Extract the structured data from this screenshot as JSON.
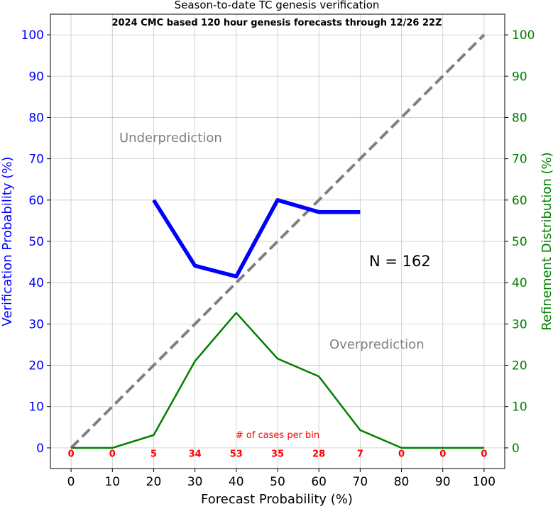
{
  "chart_data": {
    "type": "line",
    "title": "Season-to-date TC genesis verification",
    "subtitle": "2024 CMC based 120 hour genesis forecasts through 12/26 22Z",
    "xlabel": "Forecast Probability (%)",
    "ylabel_left": "Verification Probability (%)",
    "ylabel_right": "Refinement Distribution (%)",
    "xlim": [
      -5,
      105
    ],
    "ylim": [
      -5,
      105
    ],
    "x_ticks": [
      0,
      10,
      20,
      30,
      40,
      50,
      60,
      70,
      80,
      90,
      100
    ],
    "y_ticks": [
      0,
      10,
      20,
      30,
      40,
      50,
      60,
      70,
      80,
      90,
      100
    ],
    "grid": true,
    "colors": {
      "verification": "#0000ff",
      "refinement": "#008000",
      "diagonal": "#808080",
      "annotation_gray": "#808080",
      "counts": "#ff0000"
    },
    "series": [
      {
        "key": "verification",
        "x": [
          20,
          30,
          40,
          50,
          60,
          70
        ],
        "y": [
          60.0,
          44.1,
          41.5,
          60.0,
          57.1,
          57.1
        ]
      },
      {
        "key": "refinement",
        "x": [
          0,
          10,
          20,
          30,
          40,
          50,
          60,
          70,
          80,
          90,
          100
        ],
        "y": [
          0.0,
          0.0,
          3.1,
          21.0,
          32.7,
          21.6,
          17.3,
          4.3,
          0.0,
          0.0,
          0.0
        ]
      },
      {
        "key": "diagonal",
        "x": [
          0,
          100
        ],
        "y": [
          0,
          100
        ]
      }
    ],
    "annotations": {
      "underprediction": "Underprediction",
      "overprediction": "Overprediction",
      "n_label": "N = 162",
      "cases_label": "# of cases per bin"
    },
    "bin_counts": [
      0,
      0,
      5,
      34,
      53,
      35,
      28,
      7,
      0,
      0,
      0
    ]
  }
}
